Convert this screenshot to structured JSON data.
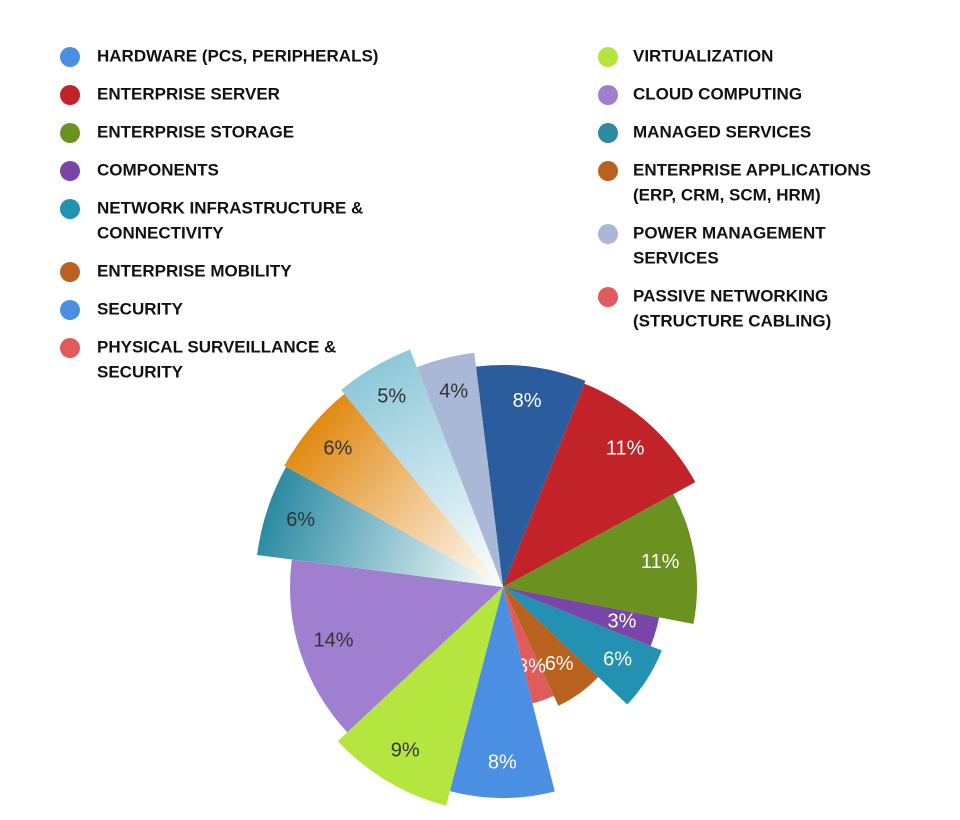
{
  "chart_data": {
    "type": "pie",
    "values": [
      8,
      11,
      11,
      3,
      6,
      6,
      3,
      8,
      9,
      14,
      6,
      6,
      5,
      4
    ],
    "value_labels": [
      "8%",
      "11%",
      "11%",
      "3%",
      "6%",
      "6%",
      "3%",
      "8%",
      "9%",
      "14%",
      "6%",
      "6%",
      "5%",
      "4%"
    ],
    "colors": [
      "#2b5c9e",
      "#c22329",
      "#6b9121",
      "#7a45a9",
      "#2392b2",
      "#b9611f",
      "#e05b5c",
      "#4a8fe1",
      "#b5e63f",
      "#a07fd0",
      [
        "#2a8ba2",
        "#ffffff"
      ],
      [
        "#e18a12",
        "#ffffff"
      ],
      [
        "#8dc8d9",
        "#ffffff"
      ],
      "#aab8d8"
    ],
    "label_colors": [
      "#ffffff",
      "#ffffff",
      "#ffffff",
      "#ffffff",
      "#ffffff",
      "#ffffff",
      "#ffffff",
      "#ffffff",
      "#333333",
      "#333333",
      "#333333",
      "#333333",
      "#333333",
      "#333333"
    ],
    "legend": [
      {
        "label": [
          "HARDWARE (PCS, PERIPHERALS)"
        ],
        "color": "#4a8fe1"
      },
      {
        "label": [
          "ENTERPRISE SERVER"
        ],
        "color": "#c22329"
      },
      {
        "label": [
          "ENTERPRISE STORAGE"
        ],
        "color": "#6b9121"
      },
      {
        "label": [
          "COMPONENTS"
        ],
        "color": "#7a45a9"
      },
      {
        "label": [
          "NETWORK INFRASTRUCTURE &",
          "CONNECTIVITY"
        ],
        "color": "#2392b2"
      },
      {
        "label": [
          "ENTERPRISE MOBILITY"
        ],
        "color": "#b9611f"
      },
      {
        "label": [
          "SECURITY"
        ],
        "color": "#4a8fe1"
      },
      {
        "label": [
          "PHYSICAL SURVEILLANCE &",
          "SECURITY"
        ],
        "color": "#e05b5c"
      },
      {
        "label": [
          "VIRTUALIZATION"
        ],
        "color": "#b5e63f"
      },
      {
        "label": [
          "CLOUD COMPUTING"
        ],
        "color": "#a07fd0"
      },
      {
        "label": [
          "MANAGED SERVICES"
        ],
        "color": "#2a8ba2"
      },
      {
        "label": [
          "ENTERPRISE APPLICATIONS",
          "(ERP, CRM, SCM, HRM)"
        ],
        "color": "#b9611f"
      },
      {
        "label": [
          "POWER MANAGEMENT",
          "SERVICES"
        ],
        "color": "#aab8d8"
      },
      {
        "label": [
          "PASSIVE NETWORKING",
          "(STRUCTURE CABLING)"
        ],
        "color": "#e05b5c"
      }
    ]
  }
}
